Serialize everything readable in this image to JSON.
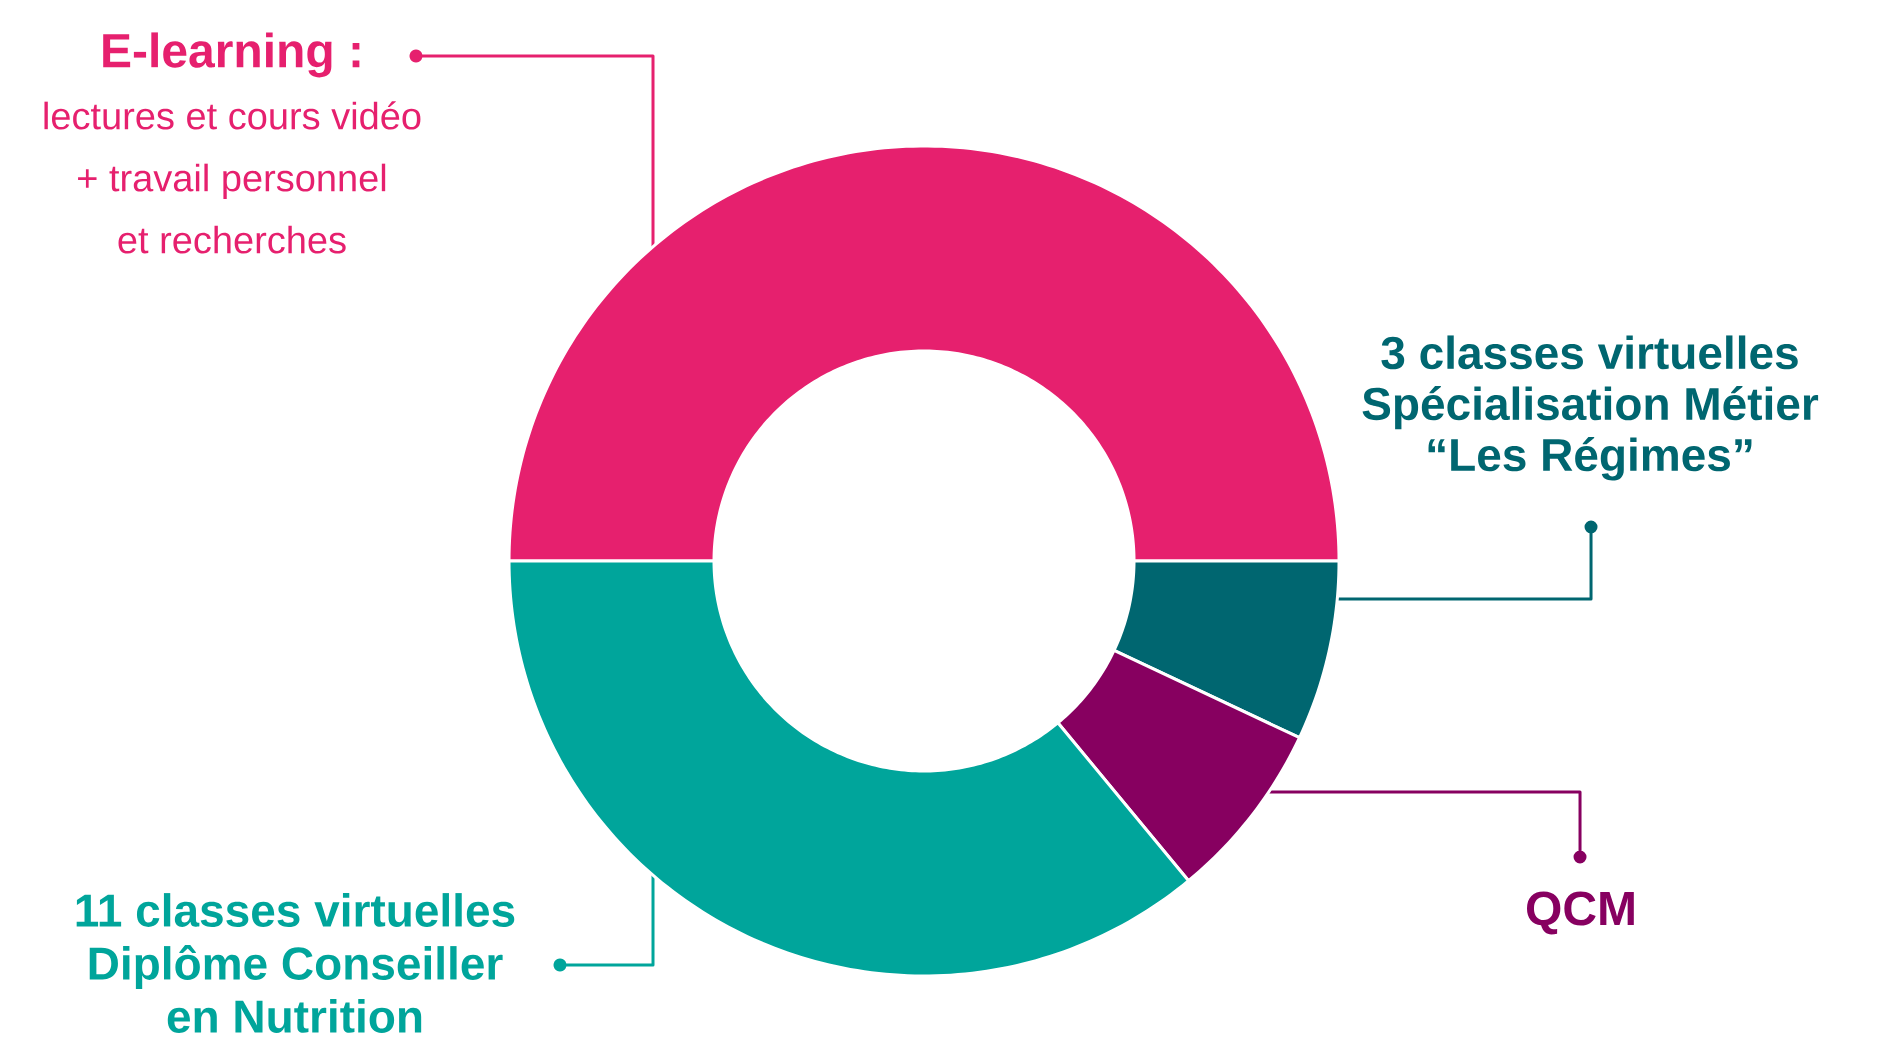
{
  "chart_data": {
    "type": "donut",
    "categories": [
      "**E-learning :** lectures et cours vidéo + travail personnel et recherches",
      "3 classes virtuelles Spécialisation Métier “Les Régimes”",
      "QCM",
      "11 classes virtuelles Diplôme Conseiller en Nutrition"
    ],
    "values": [
      50,
      7,
      7,
      36
    ],
    "colors": [
      "#e6206e",
      "#006670",
      "#870060",
      "#00a59b"
    ]
  }
}
